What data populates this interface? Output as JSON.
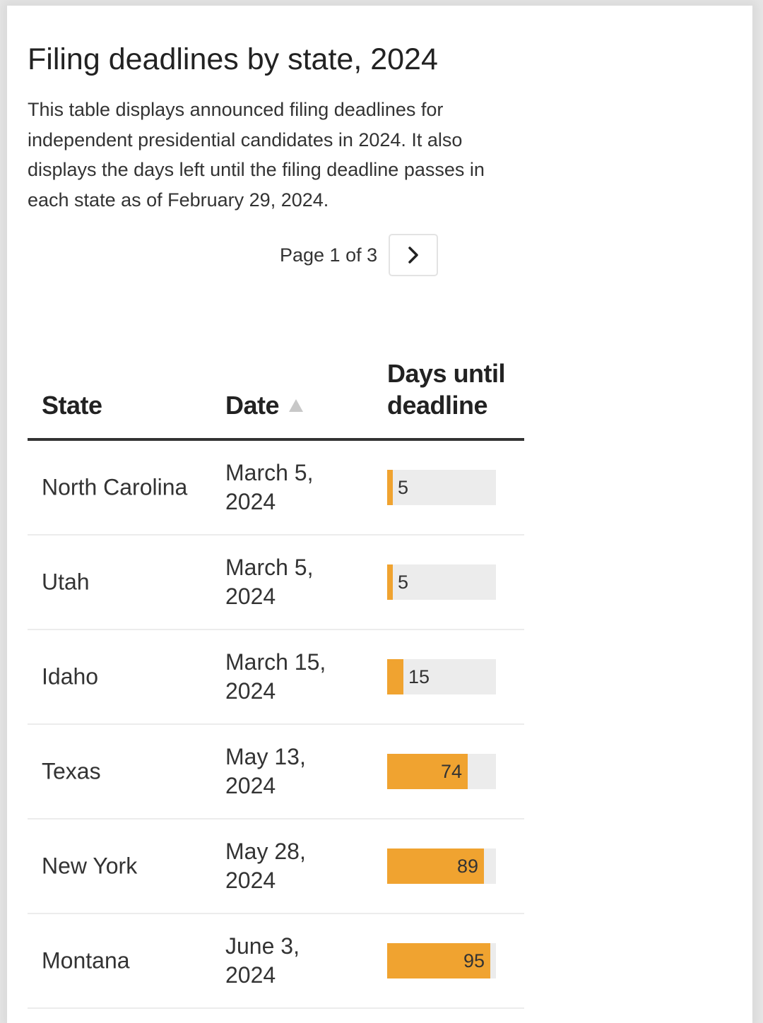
{
  "title": "Filing deadlines by state, 2024",
  "description": "This table displays announced filing deadlines for independent presidential candidates in 2024. It also displays the days left until the filing deadline passes in each state as of February 29, 2024.",
  "pagination": {
    "label": "Page 1 of 3",
    "next_icon": "chevron-right-icon"
  },
  "colors": {
    "bar": "#f0a330",
    "track": "#ececec"
  },
  "table": {
    "columns": [
      "State",
      "Date",
      "Days until deadline"
    ],
    "sort": {
      "column": "Date",
      "direction": "ascending",
      "icon": "sort-ascending-icon"
    },
    "bar_max": 100,
    "rows": [
      {
        "state": "North Carolina",
        "date": "March 5, 2024",
        "days": 5
      },
      {
        "state": "Utah",
        "date": "March 5, 2024",
        "days": 5
      },
      {
        "state": "Idaho",
        "date": "March 15, 2024",
        "days": 15
      },
      {
        "state": "Texas",
        "date": "May 13, 2024",
        "days": 74
      },
      {
        "state": "New York",
        "date": "May 28, 2024",
        "days": 89
      },
      {
        "state": "Montana",
        "date": "June 3, 2024",
        "days": 95
      }
    ]
  }
}
